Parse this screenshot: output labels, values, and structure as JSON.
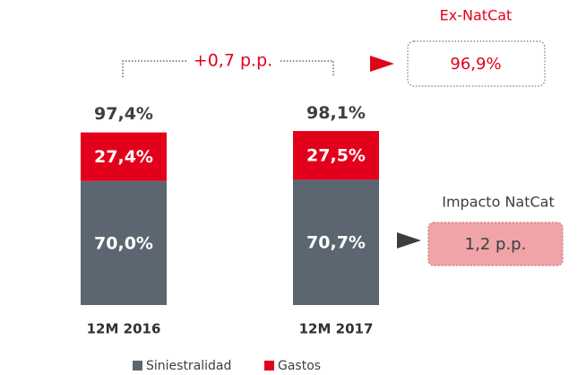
{
  "chart_data": {
    "type": "stacked_bar",
    "categories": [
      "12M 2016",
      "12M 2017"
    ],
    "series": [
      {
        "name": "Siniestralidad",
        "color": "#5b6670",
        "values": [
          70.0,
          70.7
        ],
        "value_labels": [
          "70,0%",
          "70,7%"
        ]
      },
      {
        "name": "Gastos",
        "color": "#e3001b",
        "values": [
          27.4,
          27.5
        ],
        "value_labels": [
          "27,4%",
          "27,5%"
        ]
      }
    ],
    "totals": [
      97.4,
      98.1
    ],
    "total_labels": [
      "97,4%",
      "98,1%"
    ],
    "annotations": {
      "difference": "+0,7 p.p.",
      "ex_natcat_title": "Ex-NatCat",
      "ex_natcat_value": "96,9%",
      "impact_title": "Impacto NatCat",
      "impact_value": "1,2 p.p."
    }
  }
}
